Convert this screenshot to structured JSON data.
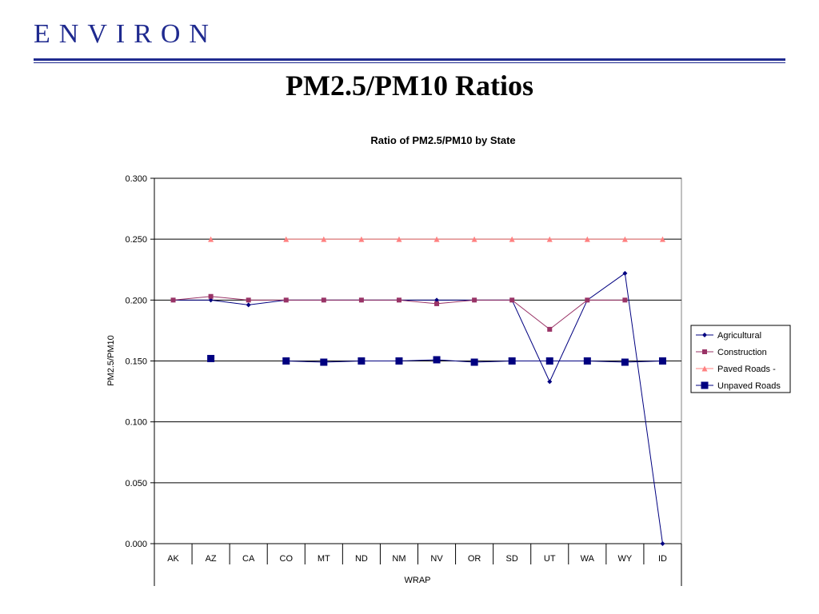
{
  "header": {
    "logo_text": "ENVIRON",
    "slide_title": "PM2.5/PM10 Ratios",
    "brand_color": "#1f2a8f"
  },
  "chart_data": {
    "type": "line",
    "title": "Ratio of PM2.5/PM10 by State",
    "xlabel": "WRAP",
    "ylabel": "PM2.5/PM10",
    "ylim": [
      0,
      0.3
    ],
    "yticks": [
      "0.300",
      "0.250",
      "0.200",
      "0.150",
      "0.100",
      "0.050",
      "0.000"
    ],
    "categories": [
      "AK",
      "AZ",
      "CA",
      "CO",
      "MT",
      "ND",
      "NM",
      "NV",
      "OR",
      "SD",
      "UT",
      "WA",
      "WY",
      "ID"
    ],
    "grid": "horizontal",
    "legend_position": "right",
    "series": [
      {
        "name": "Agricultural",
        "color": "#000080",
        "marker": "diamond",
        "values": [
          0.2,
          0.2,
          0.196,
          0.2,
          0.2,
          0.2,
          0.2,
          0.2,
          0.2,
          0.2,
          0.133,
          0.2,
          0.222,
          0.0
        ]
      },
      {
        "name": "Construction",
        "color": "#993366",
        "marker": "square-small",
        "values": [
          0.2,
          0.203,
          0.2,
          0.2,
          0.2,
          0.2,
          0.2,
          0.197,
          0.2,
          0.2,
          0.176,
          0.2,
          0.2,
          null
        ]
      },
      {
        "name": "Paved Roads -",
        "color": "#ff8080",
        "marker": "triangle",
        "values": [
          null,
          0.25,
          null,
          0.25,
          0.25,
          0.25,
          0.25,
          0.25,
          0.25,
          0.25,
          0.25,
          0.25,
          0.25,
          0.25
        ]
      },
      {
        "name": "Unpaved Roads",
        "color": "#000080",
        "marker": "square-large",
        "values": [
          null,
          0.152,
          null,
          0.15,
          0.149,
          0.15,
          0.15,
          0.151,
          0.149,
          0.15,
          0.15,
          0.15,
          0.149,
          0.15
        ]
      }
    ]
  }
}
